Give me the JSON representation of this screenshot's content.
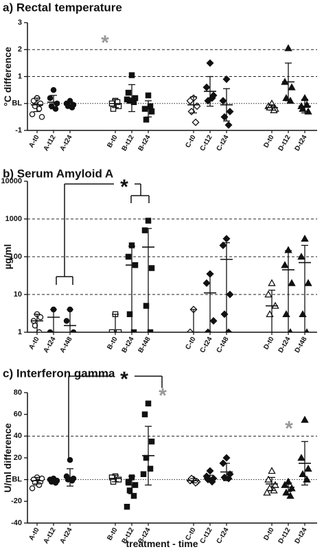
{
  "chart_data": [
    {
      "type": "dotplot",
      "title": "a) Rectal temperature",
      "ylabel": "°C difference",
      "log": false,
      "ylim": [
        -1,
        3
      ],
      "yticks": [
        -1,
        {
          "value": 0,
          "label": "BL"
        },
        1,
        2,
        3
      ],
      "reference_lines": [
        {
          "value": 0,
          "style": "dotted"
        },
        {
          "value": 1,
          "style": "dashed"
        },
        {
          "value": 2,
          "style": "dashed"
        }
      ],
      "categories": [
        "A-t0",
        "A-t12",
        "A-t24",
        "B-t0",
        "B-t12",
        "B-t24",
        "C-t0",
        "C-t12",
        "C-t24",
        "D-t0",
        "D-t12",
        "D-t24"
      ],
      "markers": [
        "open-circle",
        "circle",
        "circle",
        "open-square",
        "square",
        "square",
        "open-diamond",
        "diamond",
        "diamond",
        "open-triangle",
        "triangle",
        "triangle"
      ],
      "color": "#111111",
      "values": [
        [
          0.2,
          0.1,
          0,
          -0.1,
          -0.2,
          -0.4,
          -0.5,
          0.2
        ],
        [
          0.5,
          0.2,
          0,
          -0.1,
          -0.2
        ],
        [
          0.1,
          0,
          -0.05,
          -0.1,
          -0.15
        ],
        [
          0.1,
          0,
          -0.1,
          -0.2,
          0.05
        ],
        [
          1.05,
          0.4,
          0.2,
          0.1,
          0.05,
          0.15
        ],
        [
          0.3,
          -0.2,
          -0.3,
          -0.6,
          -0.1
        ],
        [
          0.2,
          0.1,
          -0.1,
          -0.3,
          -0.7
        ],
        [
          1.5,
          0.6,
          0.3,
          0.1,
          0.2
        ],
        [
          0.9,
          0.1,
          -0.3,
          -0.5,
          -0.8
        ],
        [
          0,
          -0.1,
          -0.2,
          -0.15,
          -0.25
        ],
        [
          2.05,
          0.8,
          0.6,
          0.2,
          0.1
        ],
        [
          0.2,
          -0.1,
          -0.3,
          -0.2,
          -0.05
        ]
      ],
      "means": [
        -0.05,
        0.05,
        -0.05,
        0,
        0.2,
        -0.2,
        -0.05,
        0.45,
        -0.05,
        -0.15,
        0.8,
        -0.1
      ],
      "errors": [
        0.25,
        0.25,
        0.1,
        0.15,
        0.5,
        0.3,
        0.3,
        0.55,
        0.6,
        0.1,
        0.7,
        0.25
      ],
      "annotations": [
        {
          "text": "*",
          "color": "#999999"
        }
      ]
    },
    {
      "type": "dotplot",
      "title": "b) Serum Amyloid A",
      "ylabel": "µg/ml",
      "log": true,
      "ylim": [
        1,
        10000
      ],
      "yticks": [
        1,
        10,
        100,
        1000,
        10000
      ],
      "reference_lines": [
        {
          "value": 10,
          "style": "dashed"
        },
        {
          "value": 100,
          "style": "dashed"
        },
        {
          "value": 1000,
          "style": "dashed"
        }
      ],
      "categories": [
        "A-t0",
        "A-t24",
        "A-t48",
        "B-t0",
        "B-t24",
        "B-t48",
        "C-t0",
        "C-t24",
        "C-t48",
        "D-t0",
        "D-t24",
        "D-t48"
      ],
      "markers": [
        "open-circle",
        "circle",
        "circle",
        "open-square",
        "square",
        "square",
        "open-diamond",
        "diamond",
        "diamond",
        "open-triangle",
        "triangle",
        "triangle"
      ],
      "color": "#111111",
      "values": [
        [
          3,
          2,
          2.5,
          1.5,
          1
        ],
        [
          4,
          1
        ],
        [
          4,
          2,
          1
        ],
        [
          3,
          1,
          1
        ],
        [
          200,
          100,
          60,
          3,
          1
        ],
        [
          900,
          500,
          50,
          5,
          1
        ],
        [
          4,
          1
        ],
        [
          35,
          20,
          2,
          1
        ],
        [
          300,
          200,
          10,
          3,
          1
        ],
        [
          20,
          10,
          5,
          3
        ],
        [
          150,
          60,
          20,
          3,
          1
        ],
        [
          300,
          100,
          20,
          3,
          1
        ]
      ],
      "means": [
        2,
        2.5,
        1.5,
        1,
        60,
        180,
        1,
        11,
        85,
        5,
        45,
        70
      ],
      "errors": [
        1,
        1.5,
        2.5,
        2,
        130,
        380,
        3,
        25,
        150,
        8,
        100,
        130
      ],
      "annotations": [
        {
          "text": "*",
          "color": "#111111"
        }
      ]
    },
    {
      "type": "dotplot",
      "title": "c) Interferon gamma",
      "ylabel": "U/ml difference",
      "xlabel": "treatment - time",
      "log": false,
      "ylim": [
        -40,
        80
      ],
      "yticks": [
        -40,
        -20,
        {
          "value": 0,
          "label": "BL"
        },
        20,
        40,
        60,
        80
      ],
      "reference_lines": [
        {
          "value": 0,
          "style": "dotted"
        },
        {
          "value": 40,
          "style": "dashed"
        }
      ],
      "categories": [
        "A-t0",
        "A-t12",
        "A-t24",
        "B-t0",
        "B-t12",
        "B-t24",
        "C-t0",
        "C-t12",
        "C-t24",
        "D-t0",
        "D-t12",
        "D-t24"
      ],
      "markers": [
        "open-circle",
        "circle",
        "circle",
        "open-square",
        "square",
        "square",
        "open-diamond",
        "diamond",
        "diamond",
        "open-triangle",
        "triangle",
        "triangle"
      ],
      "color": "#111111",
      "values": [
        [
          2,
          0,
          -2,
          -3,
          -5,
          -8,
          1
        ],
        [
          1,
          0,
          -1,
          -2,
          -3
        ],
        [
          18,
          3,
          1,
          0,
          -1
        ],
        [
          3,
          2,
          0,
          -2
        ],
        [
          2,
          -2,
          -5,
          -10,
          -15,
          -25
        ],
        [
          70,
          60,
          35,
          20,
          10,
          5
        ],
        [
          0,
          -1,
          -2,
          1,
          -3
        ],
        [
          8,
          3,
          1,
          0,
          -2
        ],
        [
          20,
          15,
          5,
          2,
          1
        ],
        [
          8,
          0,
          -5,
          -8,
          -10,
          -12
        ],
        [
          -2,
          -5,
          -8,
          -12,
          -15
        ],
        [
          55,
          20,
          10,
          5,
          0
        ]
      ],
      "means": [
        -1,
        -1,
        2,
        1,
        -5,
        22,
        -1,
        1,
        7,
        -4,
        -7,
        15
      ],
      "errors": [
        3,
        2,
        8,
        3,
        8,
        27,
        2,
        3,
        8,
        6,
        4,
        20
      ],
      "annotations": [
        {
          "text": "*",
          "color": "#999999"
        },
        {
          "text": "*",
          "color": "#999999"
        },
        {
          "text": "*",
          "color": "#111111"
        }
      ]
    }
  ]
}
